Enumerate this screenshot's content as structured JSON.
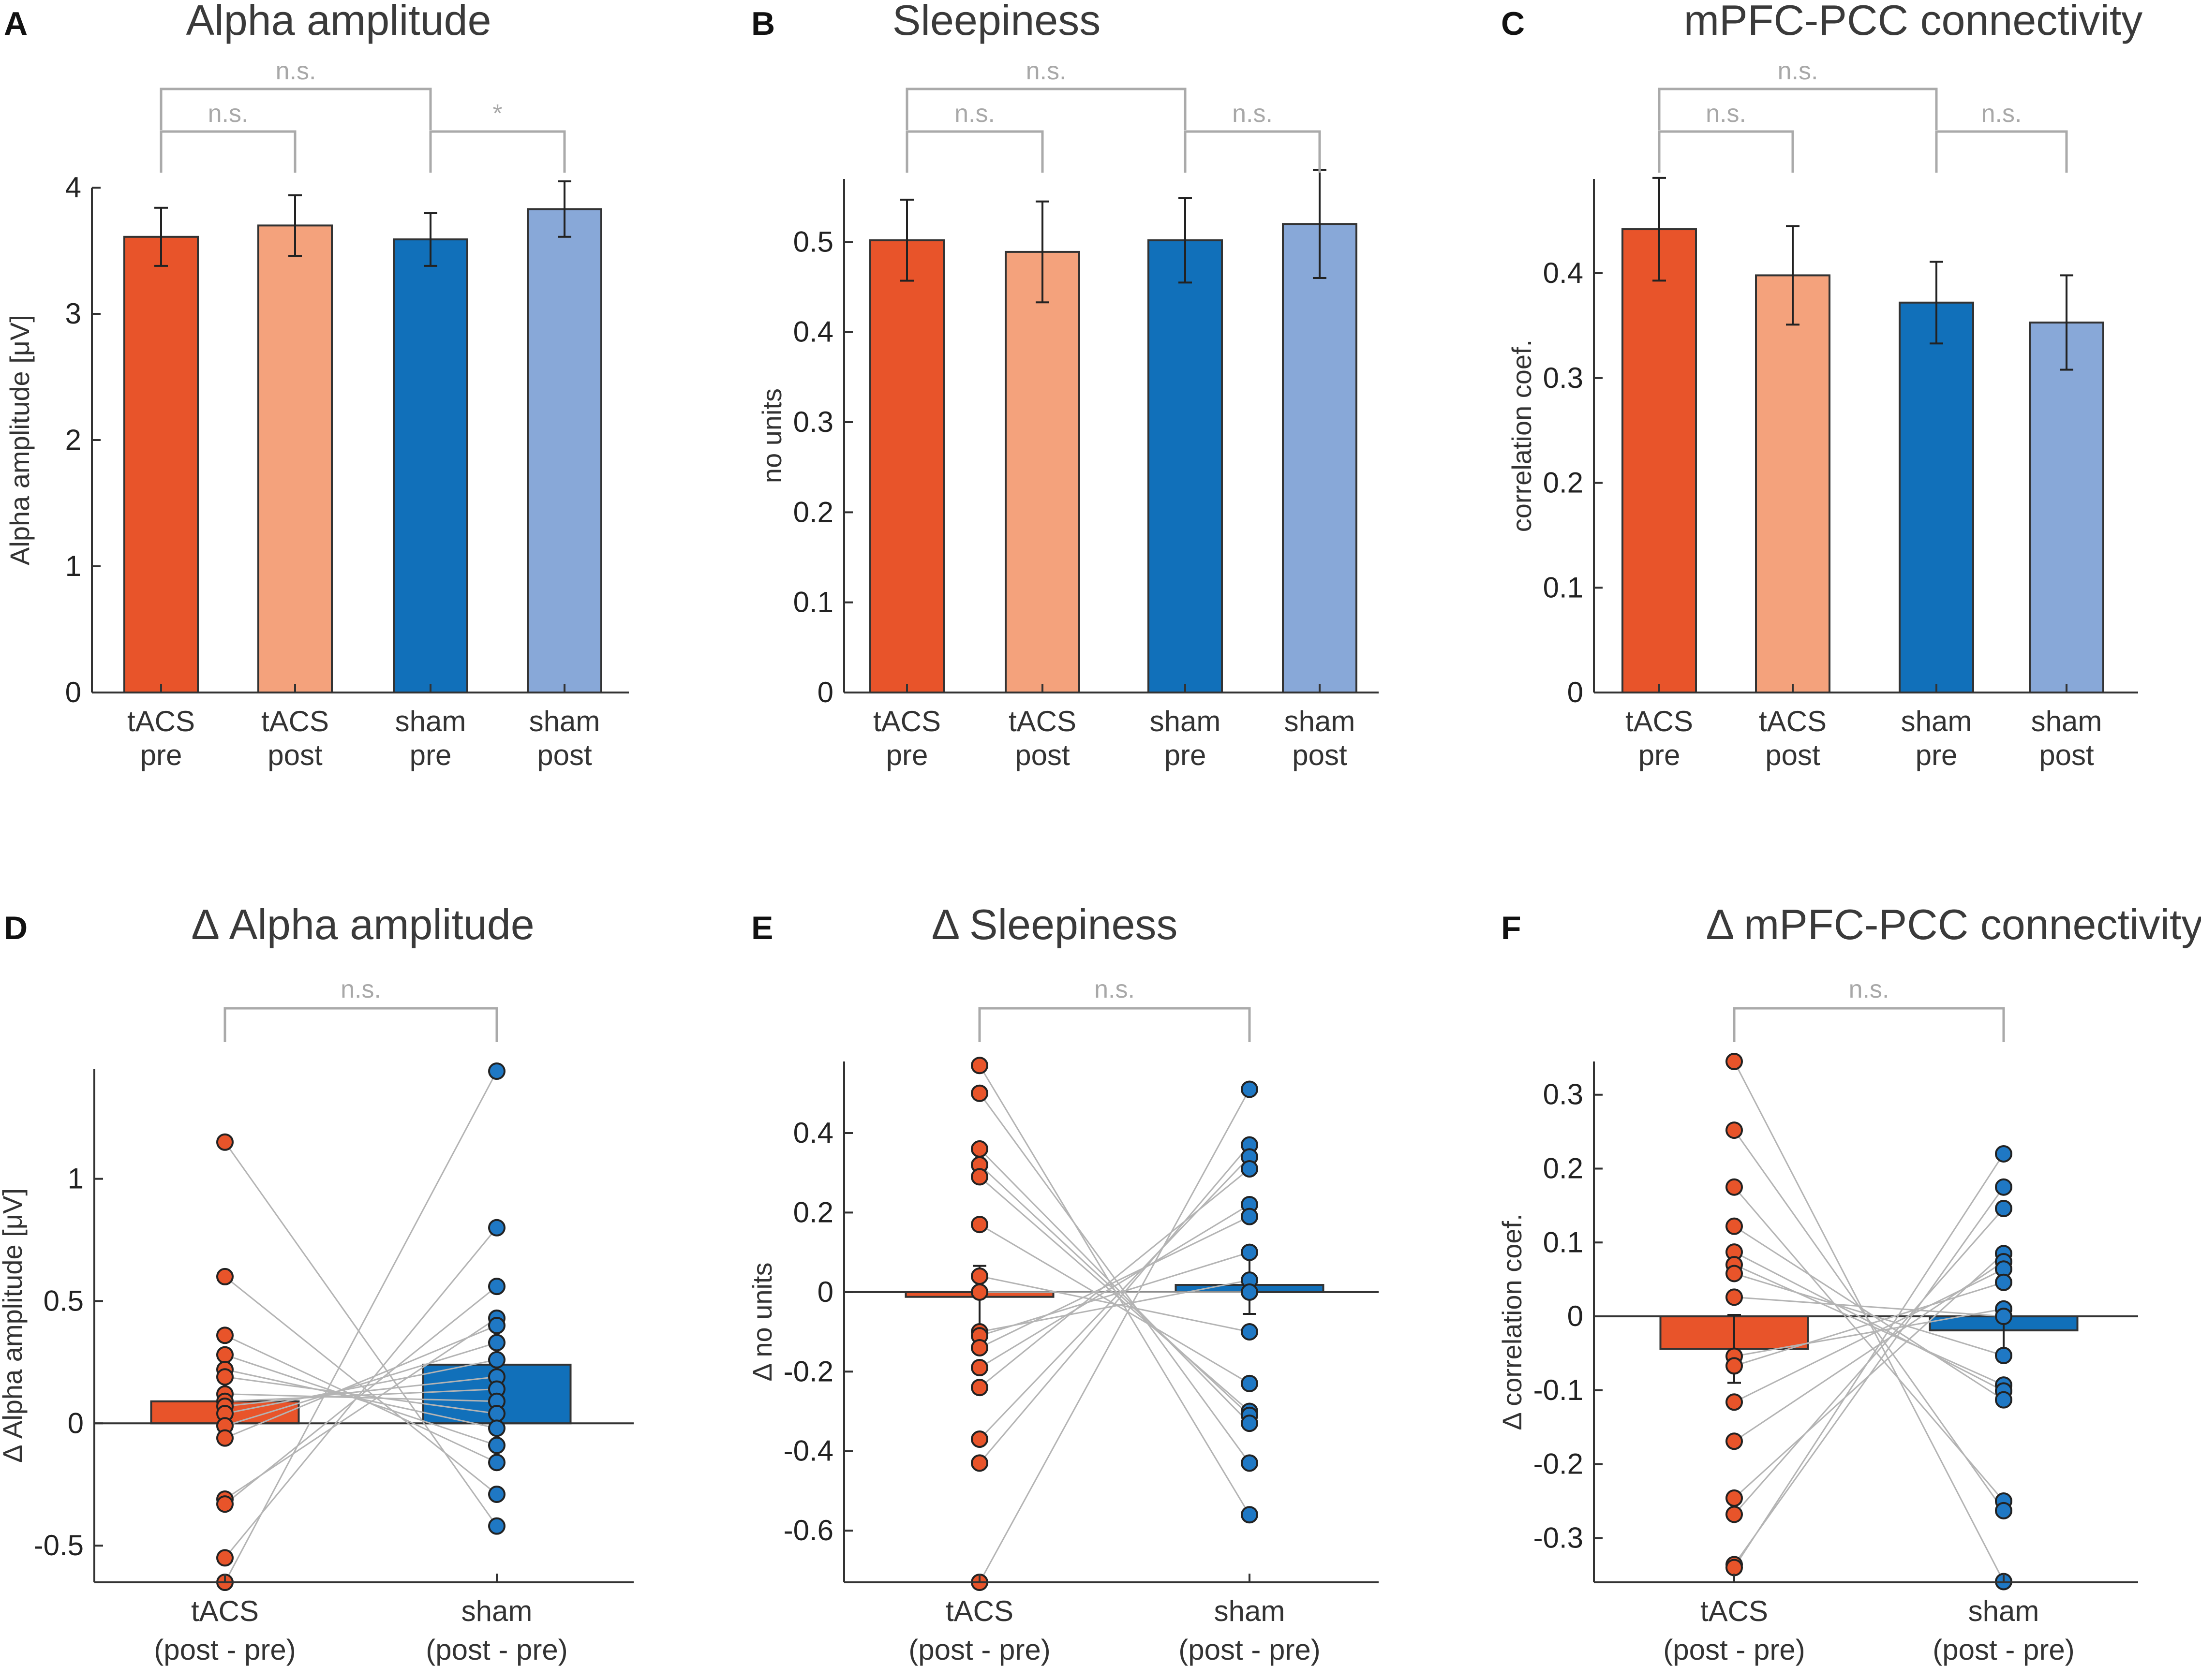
{
  "colors": {
    "tacs_pre": "#E8542A",
    "tacs_post": "#F4A27C",
    "sham_pre": "#1170BA",
    "sham_post": "#88A8D8",
    "tacs_dot": "#E8542A",
    "sham_dot": "#1F78C4",
    "bracket": "#aaaaaa",
    "pair_line": "#b4b4b4",
    "axis": "#333333"
  },
  "chart_data": [
    {
      "letter": "A",
      "type": "bar",
      "title": "Alpha amplitude",
      "ylabel": "Alpha amplitude [μV]",
      "ylim": [
        0,
        4
      ],
      "yticks": [
        0,
        1,
        2,
        3,
        4
      ],
      "ytick_labels": [
        "0",
        "1",
        "2",
        "3",
        "4"
      ],
      "categories": [
        [
          "tACS",
          "pre"
        ],
        [
          "tACS",
          "post"
        ],
        [
          "sham",
          "pre"
        ],
        [
          "sham",
          "post"
        ]
      ],
      "values": [
        3.61,
        3.7,
        3.59,
        3.83
      ],
      "errors": [
        0.23,
        0.24,
        0.21,
        0.22
      ],
      "bar_colors": [
        "tacs_pre",
        "tacs_post",
        "sham_pre",
        "sham_post"
      ],
      "brackets": [
        {
          "from": 0,
          "to": 2,
          "label": "n.s.",
          "level": 1
        },
        {
          "from": 0,
          "to": 1,
          "label": "n.s.",
          "level": 0
        },
        {
          "from": 2,
          "to": 3,
          "label": "*",
          "level": 0
        }
      ]
    },
    {
      "letter": "B",
      "type": "bar",
      "title": "Sleepiness",
      "ylabel": "no units",
      "ylim": [
        0,
        0.57
      ],
      "yticks": [
        0,
        0.1,
        0.2,
        0.3,
        0.4,
        0.5
      ],
      "ytick_labels": [
        "0",
        "0.1",
        "0.2",
        "0.3",
        "0.4",
        "0.5"
      ],
      "categories": [
        [
          "tACS",
          "pre"
        ],
        [
          "tACS",
          "post"
        ],
        [
          "sham",
          "pre"
        ],
        [
          "sham",
          "post"
        ]
      ],
      "values": [
        0.502,
        0.489,
        0.502,
        0.52
      ],
      "errors": [
        0.045,
        0.056,
        0.047,
        0.06
      ],
      "bar_colors": [
        "tacs_pre",
        "tacs_post",
        "sham_pre",
        "sham_post"
      ],
      "brackets": [
        {
          "from": 0,
          "to": 2,
          "label": "n.s.",
          "level": 1
        },
        {
          "from": 0,
          "to": 1,
          "label": "n.s.",
          "level": 0
        },
        {
          "from": 2,
          "to": 3,
          "label": "n.s.",
          "level": 0
        }
      ]
    },
    {
      "letter": "C",
      "type": "bar",
      "title": "mPFC-PCC connectivity",
      "ylabel": "correlation coef.",
      "ylim": [
        0,
        0.49
      ],
      "yticks": [
        0,
        0.1,
        0.2,
        0.3,
        0.4
      ],
      "ytick_labels": [
        "0",
        "0.1",
        "0.2",
        "0.3",
        "0.4"
      ],
      "categories": [
        [
          "tACS",
          "pre"
        ],
        [
          "tACS",
          "post"
        ],
        [
          "sham",
          "pre"
        ],
        [
          "sham",
          "post"
        ]
      ],
      "values": [
        0.442,
        0.398,
        0.372,
        0.353
      ],
      "errors": [
        0.049,
        0.047,
        0.039,
        0.045
      ],
      "bar_colors": [
        "tacs_pre",
        "tacs_post",
        "sham_pre",
        "sham_post"
      ],
      "brackets": [
        {
          "from": 0,
          "to": 2,
          "label": "n.s.",
          "level": 1
        },
        {
          "from": 0,
          "to": 1,
          "label": "n.s.",
          "level": 0
        },
        {
          "from": 2,
          "to": 3,
          "label": "n.s.",
          "level": 0
        }
      ]
    },
    {
      "letter": "D",
      "type": "bar+paired-scatter",
      "title": "Δ Alpha amplitude",
      "ylabel": "Δ Alpha amplitude [μV]",
      "ylim": [
        -0.65,
        1.45
      ],
      "yticks": [
        -0.5,
        0,
        0.5,
        1
      ],
      "ytick_labels": [
        "-0.5",
        "0",
        "0.5",
        "1"
      ],
      "categories": [
        [
          "tACS",
          "(post - pre)"
        ],
        [
          "sham",
          "(post - pre)"
        ]
      ],
      "means": [
        0.09,
        0.24
      ],
      "errors": [
        0.09,
        0.1
      ],
      "bar_colors": [
        "tacs_pre",
        "sham_pre"
      ],
      "tacs_points": [
        1.15,
        0.6,
        0.36,
        0.28,
        0.22,
        0.19,
        0.12,
        0.09,
        0.07,
        0.04,
        -0.01,
        -0.06,
        -0.31,
        -0.33,
        -0.55,
        -0.65
      ],
      "sham_points": [
        1.44,
        0.8,
        0.56,
        0.43,
        0.4,
        0.33,
        0.26,
        0.19,
        0.14,
        0.09,
        0.04,
        -0.02,
        -0.09,
        -0.16,
        -0.29,
        -0.42
      ],
      "brackets": [
        {
          "from": 0,
          "to": 1,
          "label": "n.s.",
          "level": 0
        }
      ]
    },
    {
      "letter": "E",
      "type": "bar+paired-scatter",
      "title": "Δ Sleepiness",
      "ylabel": "Δ no units",
      "ylim": [
        -0.73,
        0.58
      ],
      "yticks": [
        -0.6,
        -0.4,
        -0.2,
        0,
        0.2,
        0.4
      ],
      "ytick_labels": [
        "-0.6",
        "-0.4",
        "-0.2",
        "0",
        "0.2",
        "0.4"
      ],
      "categories": [
        [
          "tACS",
          "(post - pre)"
        ],
        [
          "sham",
          "(post - pre)"
        ]
      ],
      "means": [
        -0.012,
        0.018
      ],
      "errors": [
        0.078,
        0.073
      ],
      "bar_colors": [
        "tacs_pre",
        "sham_pre"
      ],
      "tacs_points": [
        0.57,
        0.5,
        0.36,
        0.32,
        0.29,
        0.17,
        0.04,
        0.0,
        -0.1,
        -0.11,
        -0.14,
        -0.19,
        -0.24,
        -0.37,
        -0.43,
        -0.73
      ],
      "sham_points": [
        0.51,
        0.37,
        0.34,
        0.31,
        0.22,
        0.19,
        0.1,
        0.03,
        0.0,
        -0.1,
        -0.23,
        -0.3,
        -0.31,
        -0.33,
        -0.43,
        -0.56
      ],
      "brackets": [
        {
          "from": 0,
          "to": 1,
          "label": "n.s.",
          "level": 0
        }
      ]
    },
    {
      "letter": "F",
      "type": "bar+paired-scatter",
      "title": "Δ mPFC-PCC connectivity",
      "ylabel": "Δ correlation coef.",
      "ylim": [
        -0.36,
        0.345
      ],
      "yticks": [
        -0.3,
        -0.2,
        -0.1,
        0,
        0.1,
        0.2,
        0.3
      ],
      "ytick_labels": [
        "-0.3",
        "-0.2",
        "-0.1",
        "0",
        "0.1",
        "0.2",
        "0.3"
      ],
      "categories": [
        [
          "tACS",
          "(post - pre)"
        ],
        [
          "sham",
          "(post - pre)"
        ]
      ],
      "means": [
        -0.044,
        -0.019
      ],
      "errors": [
        0.046,
        0.036
      ],
      "bar_colors": [
        "tacs_pre",
        "sham_pre"
      ],
      "tacs_points": [
        0.345,
        0.252,
        0.175,
        0.122,
        0.087,
        0.07,
        0.058,
        0.026,
        -0.054,
        -0.067,
        -0.116,
        -0.169,
        -0.246,
        -0.268,
        -0.336,
        -0.34
      ],
      "sham_points": [
        0.22,
        0.175,
        0.146,
        0.085,
        0.074,
        0.064,
        0.046,
        0.01,
        0.0,
        -0.053,
        -0.093,
        -0.101,
        -0.113,
        -0.25,
        -0.263,
        -0.359
      ],
      "brackets": [
        {
          "from": 0,
          "to": 1,
          "label": "n.s.",
          "level": 0
        }
      ]
    }
  ]
}
